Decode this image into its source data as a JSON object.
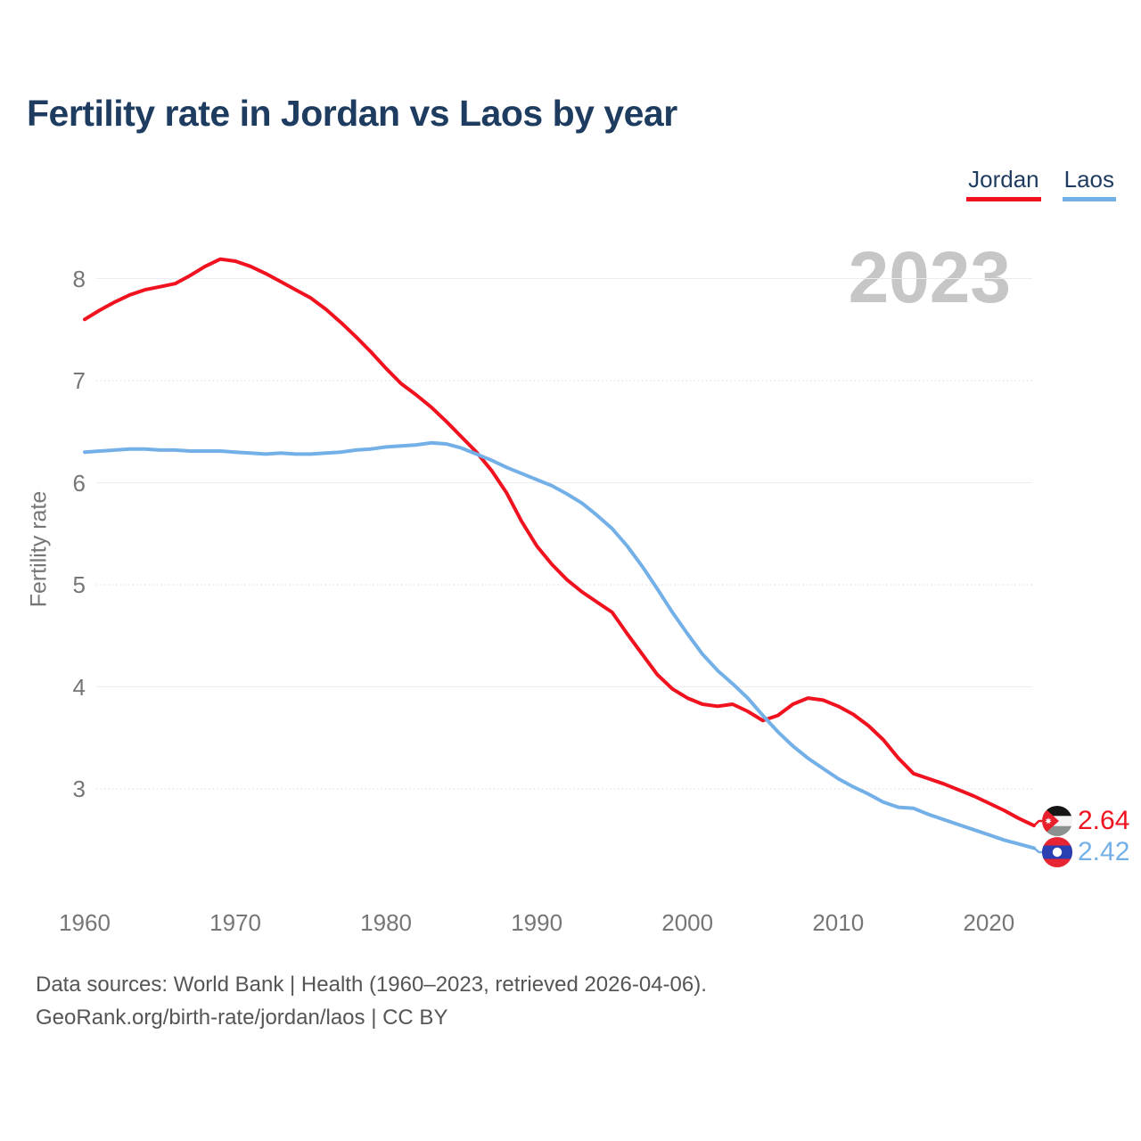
{
  "title": "Fertility rate in Jordan vs Laos by year",
  "watermark": "2023",
  "legend": [
    {
      "label": "Jordan",
      "color": "#f0121e"
    },
    {
      "label": "Laos",
      "color": "#74b0e8"
    }
  ],
  "colors": {
    "jordan_line": "#f0121e",
    "laos_line": "#74b0e8",
    "title_text": "#1e3c5f",
    "axis_text": "#767676",
    "watermark_text": "#c6c6c6",
    "grid_solid": "#ececec",
    "grid_dotted": "#d9d9d9",
    "footer_text": "#555555"
  },
  "chart_data": {
    "type": "line",
    "title": "Fertility rate in Jordan vs Laos by year",
    "xlabel": "",
    "ylabel": "Fertility rate",
    "grid": "horizontal",
    "legend_position": "top-right",
    "xlim": [
      1960,
      2023
    ],
    "ylim": [
      2.3,
      8.55
    ],
    "x_ticks": [
      1960,
      1970,
      1980,
      1990,
      2000,
      2010,
      2020
    ],
    "y_ticks": [
      3,
      4,
      5,
      6,
      7,
      8
    ],
    "x": [
      1960,
      1961,
      1962,
      1963,
      1964,
      1965,
      1966,
      1967,
      1968,
      1969,
      1970,
      1971,
      1972,
      1973,
      1974,
      1975,
      1976,
      1977,
      1978,
      1979,
      1980,
      1981,
      1982,
      1983,
      1984,
      1985,
      1986,
      1987,
      1988,
      1989,
      1990,
      1991,
      1992,
      1993,
      1994,
      1995,
      1996,
      1997,
      1998,
      1999,
      2000,
      2001,
      2002,
      2003,
      2004,
      2005,
      2006,
      2007,
      2008,
      2009,
      2010,
      2011,
      2012,
      2013,
      2014,
      2015,
      2016,
      2017,
      2018,
      2019,
      2020,
      2021,
      2022,
      2023
    ],
    "series": [
      {
        "name": "Jordan",
        "color": "#f0121e",
        "values": [
          7.6,
          7.69,
          7.77,
          7.84,
          7.89,
          7.92,
          7.95,
          8.03,
          8.12,
          8.19,
          8.17,
          8.12,
          8.05,
          7.97,
          7.89,
          7.81,
          7.7,
          7.57,
          7.43,
          7.28,
          7.12,
          6.97,
          6.86,
          6.74,
          6.6,
          6.45,
          6.3,
          6.12,
          5.9,
          5.62,
          5.38,
          5.2,
          5.05,
          4.93,
          4.83,
          4.73,
          4.52,
          4.32,
          4.12,
          3.98,
          3.89,
          3.83,
          3.81,
          3.83,
          3.76,
          3.67,
          3.72,
          3.83,
          3.89,
          3.87,
          3.81,
          3.73,
          3.62,
          3.48,
          3.3,
          3.15,
          3.1,
          3.05,
          2.99,
          2.93,
          2.86,
          2.79,
          2.71,
          2.64
        ]
      },
      {
        "name": "Laos",
        "color": "#74b0e8",
        "values": [
          6.3,
          6.31,
          6.32,
          6.33,
          6.33,
          6.32,
          6.32,
          6.31,
          6.31,
          6.31,
          6.3,
          6.29,
          6.28,
          6.29,
          6.28,
          6.28,
          6.29,
          6.3,
          6.32,
          6.33,
          6.35,
          6.36,
          6.37,
          6.39,
          6.38,
          6.34,
          6.28,
          6.22,
          6.15,
          6.09,
          6.03,
          5.97,
          5.89,
          5.8,
          5.68,
          5.55,
          5.38,
          5.18,
          4.96,
          4.73,
          4.52,
          4.32,
          4.16,
          4.03,
          3.89,
          3.72,
          3.56,
          3.42,
          3.3,
          3.2,
          3.1,
          3.02,
          2.95,
          2.87,
          2.82,
          2.81,
          2.75,
          2.7,
          2.65,
          2.6,
          2.55,
          2.5,
          2.46,
          2.42
        ]
      }
    ],
    "end_labels": [
      {
        "series": "Jordan",
        "value": "2.64",
        "flag": "jordan-flag"
      },
      {
        "series": "Laos",
        "value": "2.42",
        "flag": "laos-flag"
      }
    ]
  },
  "footer": {
    "line1": "Data sources: World Bank | Health (1960–2023, retrieved 2026-04-06).",
    "line2": "GeoRank.org/birth-rate/jordan/laos | CC BY"
  }
}
